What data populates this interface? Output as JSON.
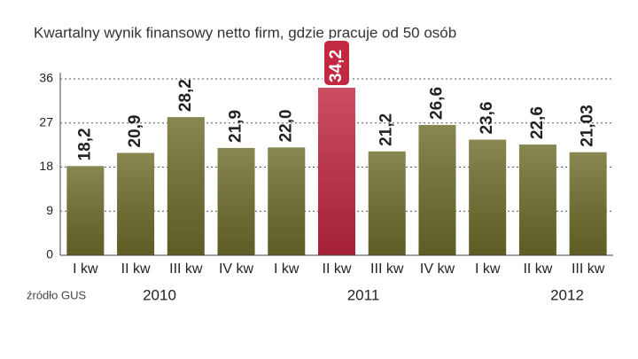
{
  "chart_data": {
    "type": "bar",
    "title": "Kwartalny wynik finansowy netto  firm, gdzie pracuje od 50 osób",
    "source": "źródło GUS",
    "categories": [
      "I kw",
      "II kw",
      "III kw",
      "IV kw",
      "I kw",
      "II kw",
      "III kw",
      "IV kw",
      "I kw",
      "II kw",
      "III kw"
    ],
    "values": [
      18.2,
      20.9,
      28.2,
      21.9,
      22.0,
      34.2,
      21.2,
      26.6,
      23.6,
      22.6,
      21.03
    ],
    "value_labels": [
      "18,2",
      "20,9",
      "28,2",
      "21,9",
      "22,0",
      "34,2",
      "21,2",
      "26,6",
      "23,6",
      "22,6",
      "21,03"
    ],
    "colors": [
      "#6e6d2c",
      "#6e6d2c",
      "#6e6d2c",
      "#6e6d2c",
      "#6e6d2c",
      "#c2283f",
      "#6e6d2c",
      "#6e6d2c",
      "#6e6d2c",
      "#6e6d2c",
      "#6e6d2c"
    ],
    "years": [
      "2010",
      "2011",
      "2012"
    ],
    "ylim": [
      0,
      36
    ],
    "yticks": [
      0,
      9,
      18,
      27,
      36
    ],
    "grid": true
  }
}
